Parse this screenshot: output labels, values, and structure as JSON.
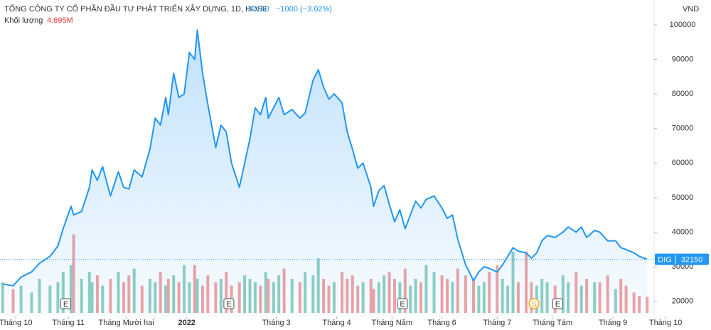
{
  "chart_data": {
    "type": "area",
    "title": "TỔNG CÔNG TY CỔ PHẦN ĐẦU TƯ PHÁT TRIỂN XÂY DỰNG, 1D, HOSE",
    "last_price": 32150,
    "change": "−1000 (−3.02%)",
    "y_axis_label": "VND",
    "xlim": [
      0,
      250
    ],
    "ylim": [
      15600,
      107200
    ],
    "yticks": [
      20000,
      30000,
      40000,
      50000,
      60000,
      70000,
      80000,
      90000,
      100000
    ],
    "xticks": [
      {
        "value": 6,
        "label": "Tháng 10"
      },
      {
        "value": 26,
        "label": "Tháng 11"
      },
      {
        "value": 48,
        "label": "Tháng Mười hai"
      },
      {
        "value": 71,
        "label": "2022"
      },
      {
        "value": 105,
        "label": "Tháng 3"
      },
      {
        "value": 128,
        "label": "Tháng 4"
      },
      {
        "value": 149,
        "label": "Tháng Năm"
      },
      {
        "value": 168,
        "label": "Tháng 6"
      },
      {
        "value": 189,
        "label": "Tháng 7"
      },
      {
        "value": 210,
        "label": "Tháng Tám"
      },
      {
        "value": 233,
        "label": "Tháng 9"
      },
      {
        "value": 253,
        "label": "Tháng 10"
      }
    ],
    "x": [
      1,
      5,
      8,
      12,
      15,
      19,
      22,
      24,
      27,
      28,
      31,
      34,
      35,
      37,
      39,
      42,
      45,
      47,
      49,
      51,
      54,
      57,
      59,
      61,
      63,
      64,
      66,
      68,
      70,
      72,
      74,
      75,
      77,
      79,
      82,
      84,
      86,
      88,
      91,
      93,
      95,
      97,
      99,
      101,
      102,
      104,
      106,
      108,
      111,
      114,
      116,
      119,
      121,
      123,
      125,
      127,
      130,
      132,
      134,
      136,
      138,
      141,
      142,
      144,
      146,
      148,
      150,
      152,
      154,
      156,
      158,
      160,
      162,
      165,
      168,
      170,
      172,
      174,
      177,
      180,
      182,
      184,
      186,
      189,
      191,
      193,
      195,
      197,
      200,
      202,
      204,
      206,
      208,
      211,
      214,
      216,
      219,
      221,
      223,
      226,
      228,
      231,
      234,
      236,
      238,
      241,
      243,
      246
    ],
    "series": [
      {
        "name": "DIG",
        "color": "#2196f3",
        "values": [
          25000,
          24500,
          27000,
          28500,
          31000,
          33000,
          36000,
          41000,
          47500,
          45000,
          46000,
          53000,
          58000,
          55000,
          59000,
          50500,
          57500,
          53000,
          52500,
          58000,
          56000,
          64000,
          73000,
          71000,
          79000,
          74000,
          86000,
          79000,
          80000,
          92000,
          90000,
          98500,
          86000,
          77000,
          64500,
          71000,
          69000,
          60000,
          53000,
          60000,
          67000,
          76000,
          74000,
          79000,
          73000,
          76000,
          79000,
          74000,
          75500,
          73000,
          74500,
          84000,
          87000,
          82000,
          78500,
          80000,
          77500,
          69000,
          64000,
          58500,
          60000,
          53000,
          47500,
          52000,
          53500,
          48000,
          43000,
          46500,
          41000,
          45000,
          49000,
          47000,
          49500,
          50500,
          47000,
          44000,
          45000,
          38000,
          30500,
          26000,
          28500,
          30000,
          29500,
          28500,
          30500,
          33000,
          35500,
          34500,
          34000,
          32500,
          34000,
          37500,
          39000,
          38500,
          40000,
          41500,
          40000,
          41500,
          38500,
          40500,
          40000,
          37500,
          37500,
          35500,
          35000,
          34000,
          33000,
          32150
        ]
      }
    ],
    "volume": {
      "name": "Khối lượng",
      "last_label": "4.695M",
      "up_color": "#8fd0c2",
      "down_color": "#f2a3a3",
      "lim": [
        0,
        25000000
      ],
      "values": [
        9000000,
        7000000,
        8000000,
        6000000,
        10000000,
        8000000,
        9000000,
        12000000,
        14000000,
        23000000,
        10000000,
        12000000,
        9000000,
        11000000,
        8000000,
        10000000,
        12000000,
        9000000,
        11000000,
        13000000,
        8000000,
        10000000,
        9000000,
        12000000,
        8000000,
        10000000,
        11000000,
        9000000,
        14000000,
        9000000,
        14000000,
        10000000,
        8000000,
        11000000,
        9000000,
        10000000,
        12000000,
        8000000,
        9000000,
        11000000,
        10000000,
        9000000,
        8000000,
        12000000,
        10000000,
        9000000,
        11000000,
        13000000,
        10000000,
        9000000,
        12000000,
        11000000,
        16000000,
        10000000,
        8000000,
        9000000,
        12000000,
        10000000,
        11000000,
        8000000,
        9000000,
        10000000,
        7000000,
        9000000,
        11000000,
        12000000,
        10000000,
        9000000,
        13000000,
        8000000,
        10000000,
        9000000,
        14000000,
        12000000,
        11000000,
        10000000,
        9000000,
        13000000,
        11000000,
        10000000,
        8000000,
        9000000,
        12000000,
        14000000,
        10000000,
        8000000,
        18000000,
        9000000,
        18000000,
        9000000,
        8000000,
        10000000,
        9000000,
        8000000,
        11000000,
        9000000,
        12000000,
        8000000,
        10000000,
        9000000,
        9000000,
        11000000,
        7000000,
        10000000,
        8000000,
        6000000,
        5000000,
        4695000
      ]
    },
    "events": [
      {
        "x": 25,
        "label": "E"
      },
      {
        "x": 87,
        "label": "E"
      },
      {
        "x": 153,
        "label": "E"
      },
      {
        "x": 203,
        "label": "S"
      },
      {
        "x": 212,
        "label": "E"
      }
    ]
  }
}
